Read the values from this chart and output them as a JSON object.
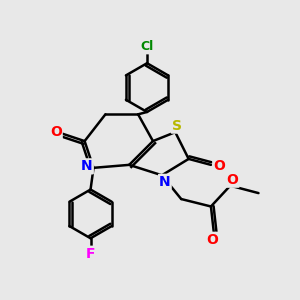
{
  "bg_color": "#e8e8e8",
  "atom_colors": {
    "C": "#000000",
    "N": "#0000ff",
    "O": "#ff0000",
    "S": "#b8b800",
    "F": "#ff00ff",
    "Cl": "#008800"
  },
  "bond_color": "#000000",
  "bond_width": 1.8,
  "figsize": [
    3.0,
    3.0
  ],
  "dpi": 100,
  "xlim": [
    0,
    10
  ],
  "ylim": [
    0,
    10
  ]
}
